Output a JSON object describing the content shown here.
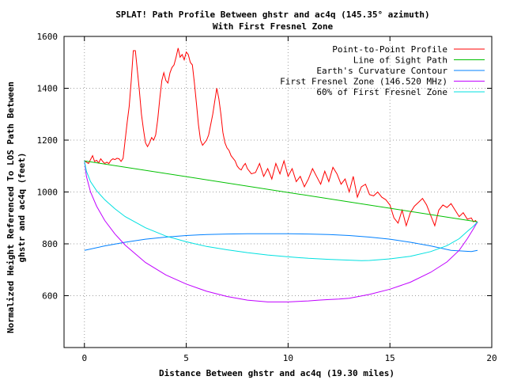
{
  "chart_data": {
    "type": "line",
    "title": "SPLAT! Path Profile Between ghstr and ac4q (145.35° azimuth)",
    "subtitle": "With First Fresnel Zone",
    "xlabel": "Distance Between ghstr and ac4q (19.30 miles)",
    "ylabel_line1": "Normalized Height Referenced To LOS Path Between",
    "ylabel_line2": "ghstr and ac4q (feet)",
    "xlim": [
      -1,
      20
    ],
    "ylim": [
      400,
      1600
    ],
    "x_ticks": [
      0,
      5,
      10,
      15,
      20
    ],
    "y_ticks": [
      600,
      800,
      1000,
      1200,
      1400,
      1600
    ],
    "grid": true,
    "legend_position": "top-right",
    "colors": {
      "profile": "#ff0000",
      "los": "#00c000",
      "curvature": "#0080ff",
      "fresnel": "#c000ff",
      "fresnel60": "#00e0e0"
    },
    "series": [
      {
        "name": "Point-to-Point Profile",
        "key": "profile",
        "x": [
          0,
          0.1,
          0.2,
          0.3,
          0.4,
          0.5,
          0.6,
          0.7,
          0.8,
          0.9,
          1.0,
          1.1,
          1.2,
          1.3,
          1.4,
          1.5,
          1.6,
          1.7,
          1.8,
          1.9,
          2.0,
          2.1,
          2.2,
          2.3,
          2.4,
          2.5,
          2.6,
          2.7,
          2.8,
          2.9,
          3.0,
          3.1,
          3.2,
          3.3,
          3.4,
          3.5,
          3.6,
          3.7,
          3.8,
          3.9,
          4.0,
          4.1,
          4.2,
          4.3,
          4.4,
          4.5,
          4.6,
          4.7,
          4.8,
          4.9,
          5.0,
          5.1,
          5.2,
          5.3,
          5.4,
          5.5,
          5.6,
          5.7,
          5.8,
          5.9,
          6.0,
          6.1,
          6.2,
          6.3,
          6.4,
          6.5,
          6.6,
          6.7,
          6.8,
          6.9,
          7.0,
          7.1,
          7.2,
          7.3,
          7.4,
          7.5,
          7.6,
          7.7,
          7.8,
          7.9,
          8.0,
          8.2,
          8.4,
          8.6,
          8.8,
          9.0,
          9.2,
          9.4,
          9.6,
          9.8,
          10.0,
          10.2,
          10.4,
          10.6,
          10.8,
          11.0,
          11.2,
          11.4,
          11.6,
          11.8,
          12.0,
          12.2,
          12.4,
          12.6,
          12.8,
          13.0,
          13.2,
          13.4,
          13.6,
          13.8,
          14.0,
          14.2,
          14.4,
          14.6,
          14.8,
          15.0,
          15.2,
          15.4,
          15.6,
          15.8,
          16.0,
          16.2,
          16.4,
          16.6,
          16.8,
          17.0,
          17.2,
          17.4,
          17.6,
          17.8,
          18.0,
          18.2,
          18.4,
          18.6,
          18.8,
          19.0,
          19.1,
          19.2,
          19.3
        ],
        "y": [
          1120,
          1115,
          1110,
          1125,
          1140,
          1118,
          1122,
          1112,
          1128,
          1118,
          1110,
          1115,
          1110,
          1122,
          1128,
          1125,
          1130,
          1128,
          1118,
          1130,
          1200,
          1270,
          1330,
          1430,
          1545,
          1545,
          1470,
          1390,
          1300,
          1240,
          1190,
          1175,
          1190,
          1210,
          1200,
          1220,
          1280,
          1360,
          1430,
          1460,
          1430,
          1420,
          1460,
          1480,
          1490,
          1520,
          1555,
          1520,
          1530,
          1510,
          1540,
          1530,
          1500,
          1490,
          1420,
          1340,
          1260,
          1200,
          1180,
          1190,
          1200,
          1220,
          1260,
          1300,
          1350,
          1400,
          1360,
          1300,
          1230,
          1190,
          1170,
          1160,
          1140,
          1130,
          1120,
          1100,
          1090,
          1085,
          1100,
          1110,
          1090,
          1070,
          1075,
          1110,
          1060,
          1090,
          1050,
          1110,
          1070,
          1120,
          1060,
          1090,
          1040,
          1060,
          1020,
          1050,
          1090,
          1060,
          1030,
          1080,
          1040,
          1095,
          1070,
          1030,
          1050,
          1000,
          1060,
          980,
          1020,
          1030,
          990,
          985,
          1000,
          980,
          970,
          950,
          900,
          880,
          930,
          870,
          920,
          945,
          960,
          975,
          950,
          910,
          870,
          930,
          950,
          940,
          955,
          930,
          905,
          920,
          895,
          900,
          885,
          890,
          880
        ]
      },
      {
        "name": "Line of Sight Path",
        "key": "los",
        "x": [
          0,
          19.3
        ],
        "y": [
          1120,
          885
        ]
      },
      {
        "name": "Earth's Curvature Contour",
        "key": "curvature",
        "x": [
          0,
          1,
          2,
          3,
          4,
          5,
          6,
          7,
          8,
          9,
          9.65,
          10,
          11,
          12,
          13,
          14,
          15,
          16,
          17,
          18,
          19,
          19.3
        ],
        "y": [
          775,
          792,
          806,
          818,
          826,
          832,
          836,
          838,
          839,
          839,
          839,
          839,
          838,
          836,
          832,
          826,
          818,
          806,
          792,
          775,
          770,
          775
        ]
      },
      {
        "name": "First Fresnel Zone (146.520 MHz)",
        "key": "fresnel",
        "x": [
          0,
          0.1,
          0.3,
          0.6,
          1,
          1.5,
          2,
          3,
          4,
          5,
          6,
          7,
          8,
          9,
          10,
          11,
          11.5,
          12,
          12.5,
          13,
          14,
          15,
          16,
          17,
          17.8,
          18.4,
          18.8,
          19.1,
          19.3
        ],
        "y": [
          1120,
          1060,
          1000,
          945,
          890,
          838,
          795,
          728,
          680,
          645,
          617,
          597,
          583,
          576,
          576,
          580,
          583,
          585,
          587,
          590,
          605,
          625,
          652,
          690,
          730,
          775,
          820,
          858,
          885
        ]
      },
      {
        "name": "60% of First Fresnel Zone",
        "key": "fresnel60",
        "x": [
          0,
          0.1,
          0.3,
          0.6,
          1,
          1.5,
          2,
          3,
          4,
          5,
          6,
          7,
          8,
          9,
          10,
          11,
          12,
          13,
          13.6,
          14,
          15,
          16,
          17,
          17.8,
          18.4,
          18.8,
          19.1,
          19.3
        ],
        "y": [
          1120,
          1080,
          1040,
          1005,
          970,
          935,
          905,
          862,
          830,
          808,
          790,
          777,
          766,
          757,
          750,
          744,
          740,
          737,
          735,
          736,
          742,
          752,
          770,
          793,
          820,
          848,
          868,
          885
        ]
      }
    ]
  }
}
